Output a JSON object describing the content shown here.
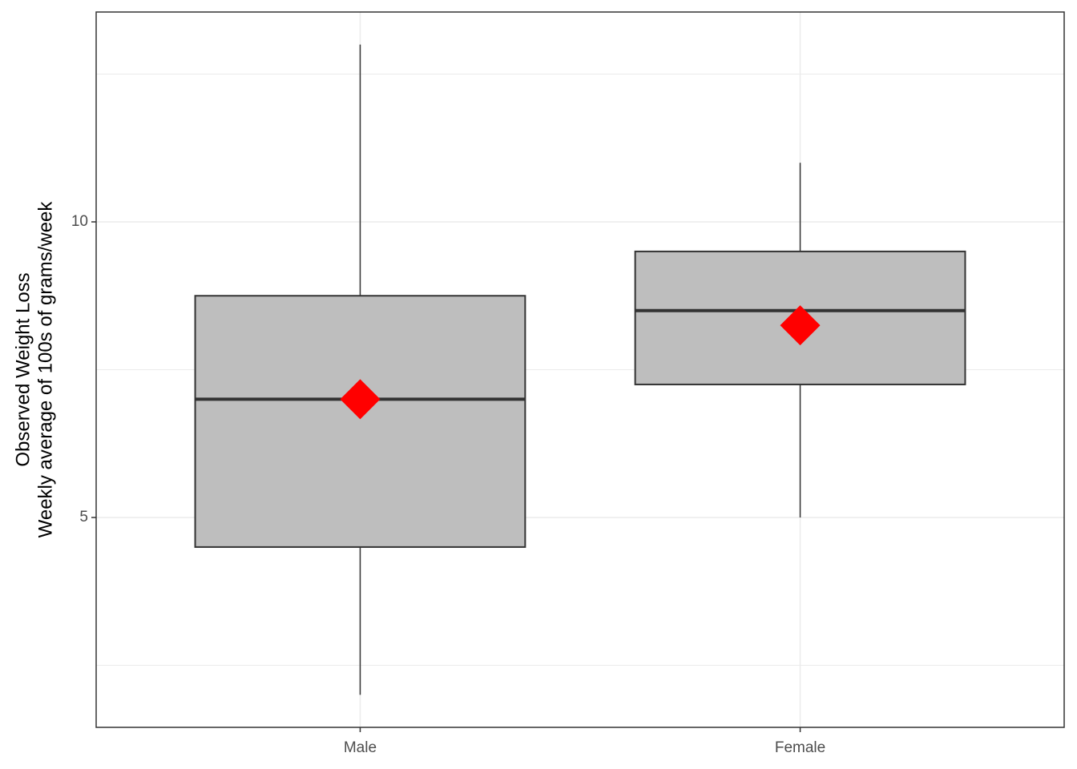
{
  "chart_data": {
    "type": "boxplot",
    "y_label": [
      "Observed Weight Loss",
      "Weekly average of 100s of grams/week"
    ],
    "categories": [
      "Male",
      "Female"
    ],
    "whisker_low": [
      2.0,
      5.0
    ],
    "q1": [
      4.5,
      7.25
    ],
    "median": [
      7.0,
      8.5
    ],
    "q3": [
      8.75,
      9.5
    ],
    "whisker_high": [
      13.0,
      11.0
    ],
    "mean": [
      7.0,
      8.25
    ],
    "box_color": "#bebebe",
    "mean_color": "#ff0000",
    "ylim": [
      1.45,
      13.55
    ],
    "yticks": [
      5,
      10
    ],
    "minor_yticks": [
      2.5,
      7.5,
      12.5
    ],
    "grid": true
  }
}
